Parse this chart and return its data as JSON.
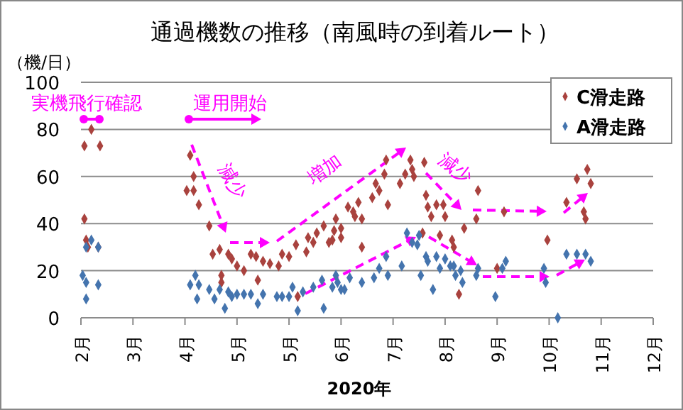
{
  "chart_data": {
    "type": "scatter",
    "title": "通過機数の推移（南風時の到着ルート）",
    "ylabel": "（機/日）",
    "xlabel": "2020年",
    "annotations": [
      "実機飛行確認",
      "運用開始",
      "減少",
      "増加",
      "減少"
    ],
    "xlim": [
      "2020-02-01",
      "2020-12-27"
    ],
    "xticks": [
      {
        "value": "2020-02-01",
        "label": "2月"
      },
      {
        "value": "2020-03-02",
        "label": "3月"
      },
      {
        "value": "2020-04-01",
        "label": "4月"
      },
      {
        "value": "2020-05-01",
        "label": "5月"
      },
      {
        "value": "2020-05-31",
        "label": "5月"
      },
      {
        "value": "2020-06-30",
        "label": "6月"
      },
      {
        "value": "2020-07-30",
        "label": "7月"
      },
      {
        "value": "2020-08-29",
        "label": "8月"
      },
      {
        "value": "2020-09-28",
        "label": "9月"
      },
      {
        "value": "2020-10-28",
        "label": "10月"
      },
      {
        "value": "2020-11-27",
        "label": "11月"
      },
      {
        "value": "2020-12-27",
        "label": "12月"
      }
    ],
    "ylim": [
      0,
      100
    ],
    "yticks": [
      0,
      20,
      40,
      60,
      80,
      100
    ],
    "grid": "y",
    "legend": "top right",
    "marker": "diamond",
    "series": [
      {
        "name": "C滑走路",
        "color": "#a9423e",
        "x": [
          "2020-02-03",
          "2020-02-03",
          "2020-02-04",
          "2020-02-05",
          "2020-02-07",
          "2020-02-11",
          "2020-02-12",
          "2020-04-04",
          "2020-04-02",
          "2020-04-06",
          "2020-04-06",
          "2020-04-09",
          "2020-04-15",
          "2020-04-17",
          "2020-04-21",
          "2020-04-22",
          "2020-04-22",
          "2020-04-26",
          "2020-04-28",
          "2020-05-01",
          "2020-05-05",
          "2020-05-09",
          "2020-05-12",
          "2020-05-13",
          "2020-05-16",
          "2020-05-20",
          "2020-05-25",
          "2020-05-27",
          "2020-05-31",
          "2020-06-04",
          "2020-06-05",
          "2020-06-10",
          "2020-06-11",
          "2020-06-14",
          "2020-06-16",
          "2020-06-20",
          "2020-06-23",
          "2020-06-25",
          "2020-06-26",
          "2020-06-27",
          "2020-06-30",
          "2020-06-30",
          "2020-07-04",
          "2020-07-07",
          "2020-07-08",
          "2020-07-10",
          "2020-07-12",
          "2020-07-12",
          "2020-07-18",
          "2020-07-20",
          "2020-07-22",
          "2020-07-25",
          "2020-07-26",
          "2020-07-27",
          "2020-08-03",
          "2020-08-06",
          "2020-08-09",
          "2020-08-10",
          "2020-08-11",
          "2020-08-16",
          "2020-08-17",
          "2020-08-18",
          "2020-08-19",
          "2020-08-21",
          "2020-08-24",
          "2020-08-26",
          "2020-08-28",
          "2020-08-29",
          "2020-09-02",
          "2020-09-03",
          "2020-09-06",
          "2020-09-09",
          "2020-09-16",
          "2020-09-17",
          "2020-09-28",
          "2020-10-02",
          "2020-10-27",
          "2020-11-07",
          "2020-11-13",
          "2020-11-17",
          "2020-11-18",
          "2020-11-19",
          "2020-11-21"
        ],
        "values": [
          42,
          73,
          33,
          30,
          80,
          30,
          73,
          69,
          54,
          60,
          54,
          48,
          39,
          27,
          29,
          18,
          15,
          27,
          25,
          22,
          20,
          27,
          26,
          16,
          24,
          23,
          22,
          27,
          26,
          31,
          9,
          28,
          34,
          32,
          36,
          39,
          32,
          33,
          37,
          42,
          38,
          34,
          47,
          45,
          43,
          49,
          42,
          30,
          51,
          57,
          54,
          61,
          67,
          48,
          57,
          61,
          67,
          63,
          60,
          36,
          66,
          52,
          47,
          43,
          48,
          35,
          48,
          43,
          33,
          30,
          10,
          38,
          42,
          54,
          21,
          45,
          33,
          49,
          59,
          45,
          42,
          63,
          57
        ]
      },
      {
        "name": "A滑走路",
        "color": "#4474ae",
        "x": [
          "2020-02-02",
          "2020-02-04",
          "2020-02-04",
          "2020-02-07",
          "2020-02-04",
          "2020-02-11",
          "2020-02-11",
          "2020-04-04",
          "2020-04-07",
          "2020-04-08",
          "2020-04-09",
          "2020-04-15",
          "2020-04-18",
          "2020-04-21",
          "2020-04-24",
          "2020-04-26",
          "2020-04-28",
          "2020-05-01",
          "2020-05-05",
          "2020-05-09",
          "2020-05-13",
          "2020-05-16",
          "2020-05-24",
          "2020-05-27",
          "2020-05-31",
          "2020-06-02",
          "2020-06-05",
          "2020-06-08",
          "2020-06-14",
          "2020-06-19",
          "2020-06-20",
          "2020-06-25",
          "2020-06-27",
          "2020-06-28",
          "2020-06-30",
          "2020-07-02",
          "2020-07-05",
          "2020-07-12",
          "2020-07-19",
          "2020-07-22",
          "2020-07-26",
          "2020-07-27",
          "2020-08-04",
          "2020-08-07",
          "2020-08-10",
          "2020-08-13",
          "2020-08-14",
          "2020-08-15",
          "2020-08-18",
          "2020-08-19",
          "2020-08-22",
          "2020-08-24",
          "2020-08-26",
          "2020-08-29",
          "2020-09-01",
          "2020-09-03",
          "2020-09-04",
          "2020-09-07",
          "2020-09-08",
          "2020-09-16",
          "2020-09-17",
          "2020-09-27",
          "2020-10-01",
          "2020-10-03",
          "2020-10-25",
          "2020-10-26",
          "2020-11-02",
          "2020-11-07",
          "2020-11-13",
          "2020-11-18",
          "2020-11-21"
        ],
        "values": [
          18,
          15,
          8,
          33,
          30,
          14,
          30,
          14,
          18,
          8,
          14,
          12,
          8,
          12,
          4,
          11,
          9,
          10,
          10,
          10,
          6,
          10,
          9,
          9,
          9,
          13,
          3,
          11,
          13,
          16,
          4,
          13,
          18,
          15,
          12,
          12,
          17,
          15,
          17,
          21,
          26,
          18,
          22,
          36,
          32,
          31,
          35,
          18,
          26,
          24,
          12,
          26,
          21,
          25,
          22,
          22,
          18,
          20,
          15,
          18,
          21,
          9,
          21,
          24,
          21,
          15,
          0,
          27,
          27,
          27,
          24
        ]
      }
    ]
  }
}
